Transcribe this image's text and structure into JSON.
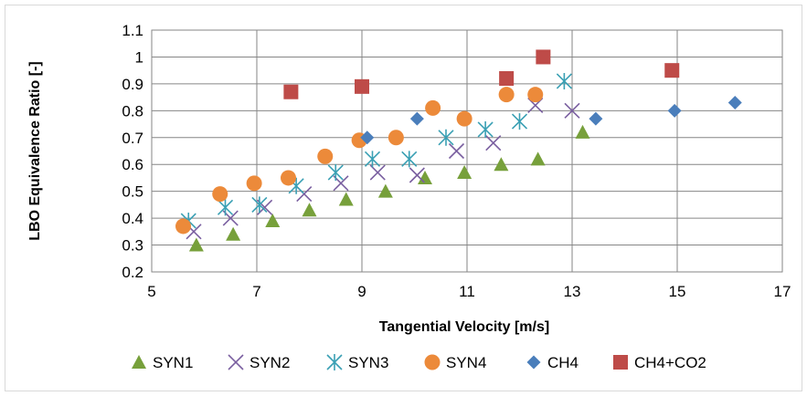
{
  "chart_data": {
    "type": "scatter",
    "xlabel": "Tangential Velocity [m/s]",
    "ylabel": "LBO Equivalence  Ratio [-]",
    "xlim": [
      5,
      17
    ],
    "ylim": [
      0.2,
      1.1
    ],
    "x_ticks": [
      "5",
      "7",
      "9",
      "11",
      "13",
      "15",
      "17"
    ],
    "y_ticks": [
      "0.2",
      "0.3",
      "0.4",
      "0.5",
      "0.6",
      "0.7",
      "0.8",
      "0.9",
      "1",
      "1.1"
    ],
    "grid": true,
    "legend_position": "bottom",
    "series": [
      {
        "name": "SYN1",
        "marker": "triangle",
        "color": "#77a03b",
        "x": [
          5.85,
          6.55,
          7.3,
          8.0,
          8.7,
          9.45,
          10.2,
          10.95,
          11.65,
          12.35,
          13.2
        ],
        "y": [
          0.3,
          0.34,
          0.39,
          0.43,
          0.47,
          0.5,
          0.55,
          0.57,
          0.6,
          0.62,
          0.72
        ]
      },
      {
        "name": "SYN2",
        "marker": "x",
        "color": "#7a5fa0",
        "x": [
          5.8,
          6.5,
          7.15,
          7.9,
          8.6,
          9.3,
          10.05,
          10.8,
          11.5,
          12.3,
          13.0
        ],
        "y": [
          0.35,
          0.4,
          0.44,
          0.49,
          0.53,
          0.57,
          0.56,
          0.65,
          0.68,
          0.82,
          0.8
        ]
      },
      {
        "name": "SYN3",
        "marker": "asterisk",
        "color": "#3aa0b4",
        "x": [
          5.7,
          6.4,
          7.05,
          7.75,
          8.5,
          9.2,
          9.9,
          10.6,
          11.35,
          12.0,
          12.85
        ],
        "y": [
          0.39,
          0.44,
          0.45,
          0.52,
          0.57,
          0.62,
          0.62,
          0.7,
          0.73,
          0.76,
          0.91
        ]
      },
      {
        "name": "SYN4",
        "marker": "circle",
        "color": "#ec8a3a",
        "x": [
          5.6,
          6.3,
          6.95,
          7.6,
          8.3,
          8.95,
          9.65,
          10.35,
          10.95,
          11.75,
          12.3
        ],
        "y": [
          0.37,
          0.49,
          0.53,
          0.55,
          0.63,
          0.69,
          0.7,
          0.81,
          0.77,
          0.86,
          0.86
        ]
      },
      {
        "name": "CH4",
        "marker": "diamond",
        "color": "#4a7ebb",
        "x": [
          9.1,
          10.05,
          13.45,
          14.95,
          16.1
        ],
        "y": [
          0.7,
          0.77,
          0.77,
          0.8,
          0.83
        ]
      },
      {
        "name": "CH4+CO2",
        "marker": "square",
        "color": "#be4b48",
        "x": [
          7.65,
          9.0,
          11.75,
          12.45,
          14.9
        ],
        "y": [
          0.87,
          0.89,
          0.92,
          1.0,
          0.95
        ]
      }
    ]
  }
}
